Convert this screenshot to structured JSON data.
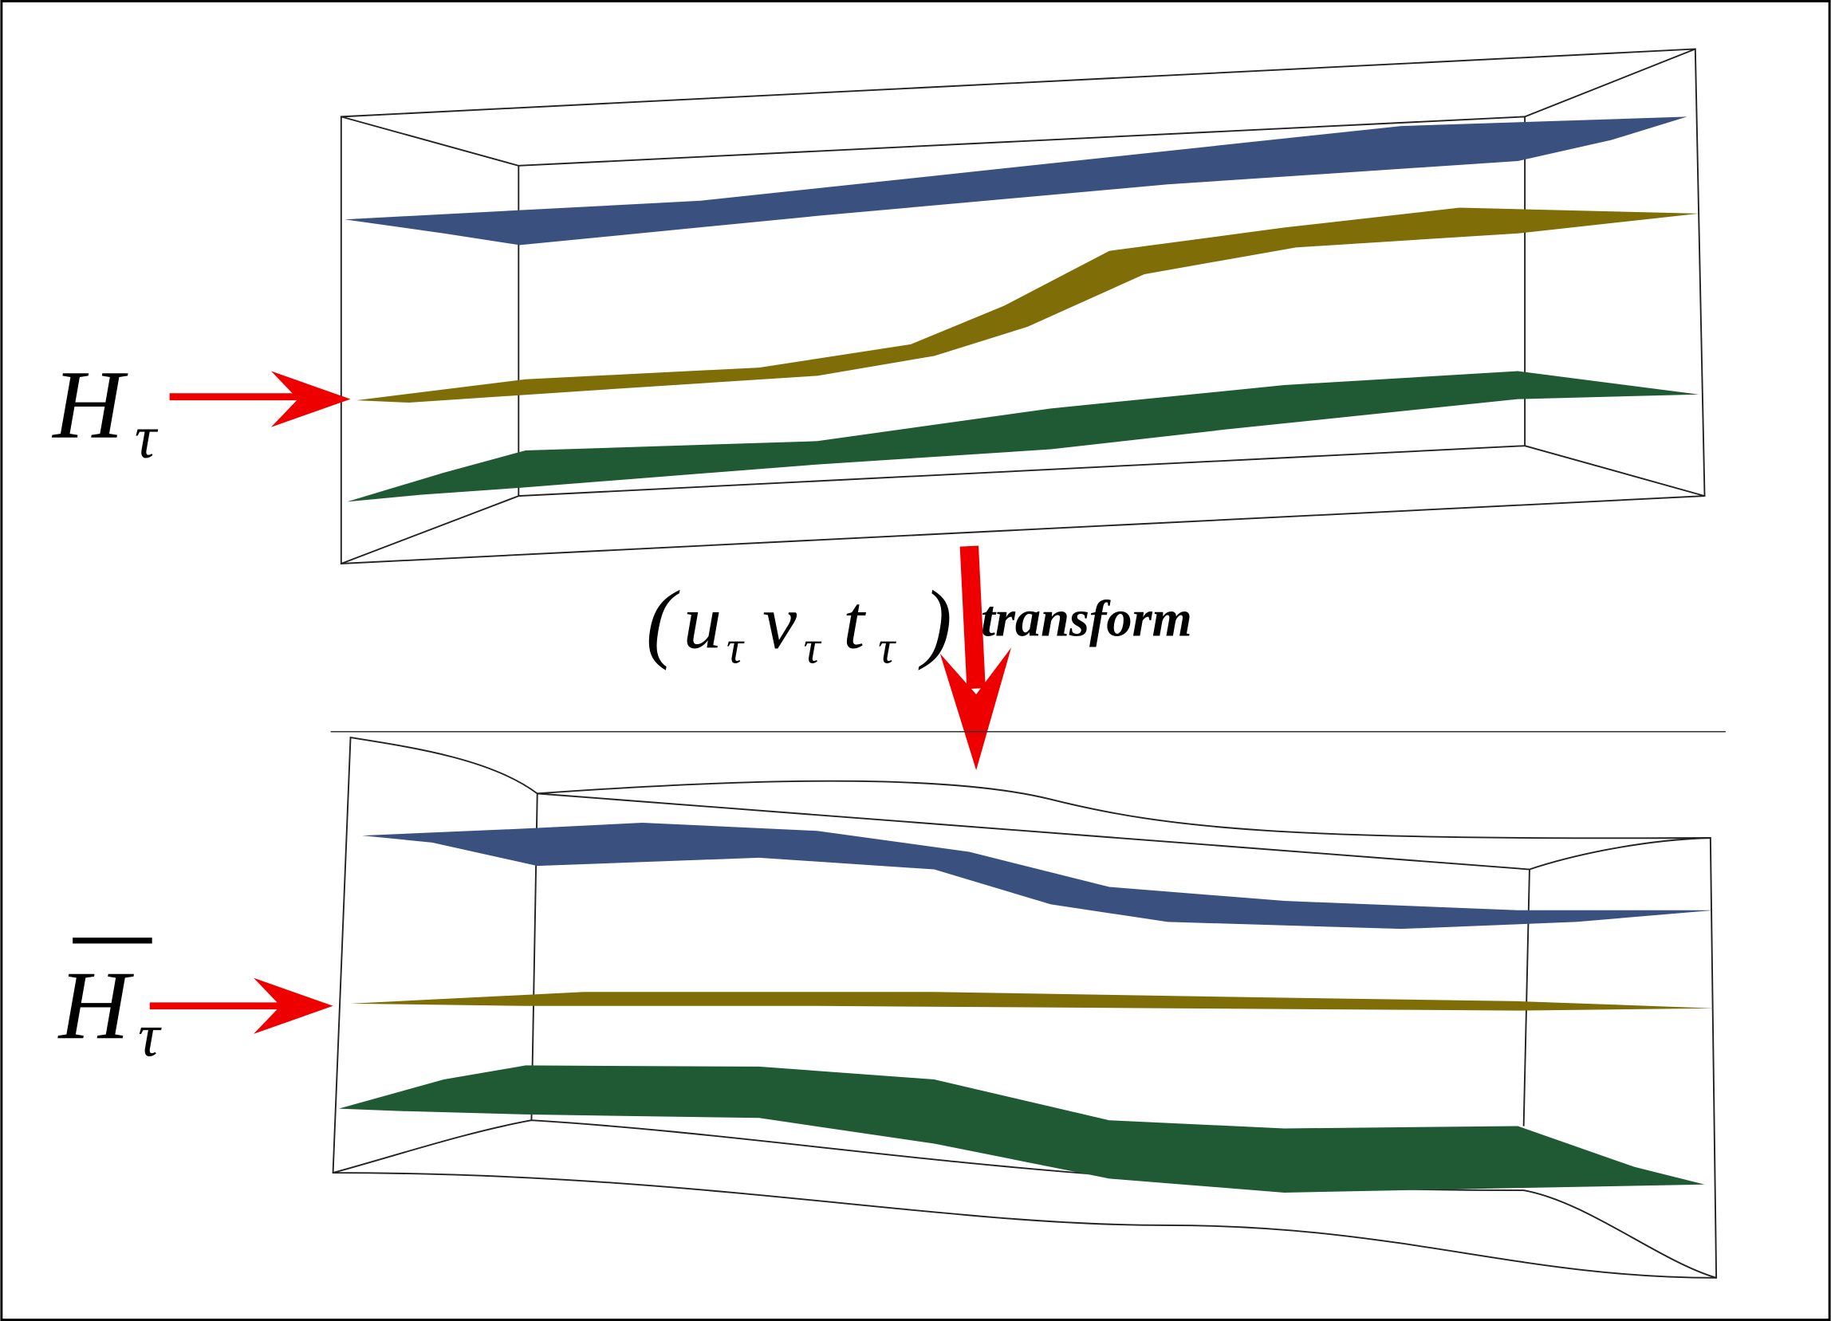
{
  "top_label": {
    "main": "H",
    "sub": "τ"
  },
  "bottom_label": {
    "main": "H",
    "sub": "τ"
  },
  "transform": {
    "open": "(",
    "params": [
      {
        "main": "u",
        "sub": "τ"
      },
      {
        "main": "v",
        "sub": "τ"
      },
      {
        "main": "t",
        "sub": "τ"
      }
    ],
    "close": ")",
    "word": "transform"
  }
}
